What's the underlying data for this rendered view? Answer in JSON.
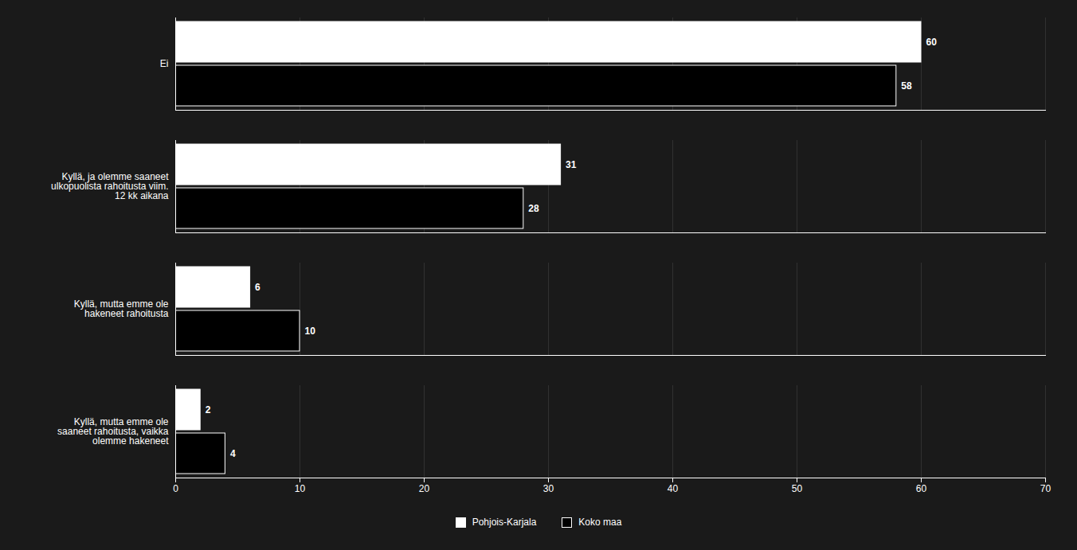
{
  "chart_data": {
    "type": "bar",
    "orientation": "horizontal",
    "categories": [
      "Ei",
      "Kyllä, ja olemme saaneet\nulkopuolista rahoitusta viim.\n12 kk aikana",
      "Kyllä, mutta emme ole\nhakeneet rahoitusta",
      "Kyllä, mutta emme ole\nsaaneet rahoitusta, vaikka\nolemme hakeneet"
    ],
    "series": [
      {
        "name": "Pohjois-Karjala",
        "color": "#ffffff",
        "values": [
          60,
          31,
          6,
          2
        ]
      },
      {
        "name": "Koko maa",
        "color": "#000000",
        "values": [
          58,
          28,
          10,
          4
        ]
      }
    ],
    "xlim": [
      0,
      70
    ],
    "xticks": [
      0,
      10,
      20,
      30,
      40,
      50,
      60,
      70
    ],
    "grid": true,
    "data_labels": true,
    "legend": "bottom"
  }
}
